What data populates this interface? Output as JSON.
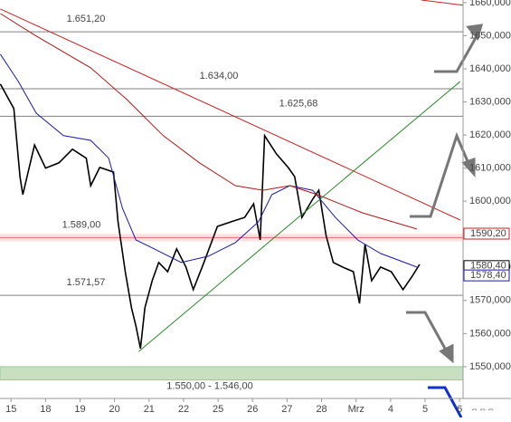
{
  "chart_data": {
    "type": "line",
    "xlim": [
      -0.32,
      13.1
    ],
    "ylim": [
      1540.4,
      1660.8
    ],
    "xticks": [
      {
        "value": 0,
        "label": "15"
      },
      {
        "value": 1,
        "label": "18"
      },
      {
        "value": 2,
        "label": "19"
      },
      {
        "value": 3,
        "label": "20"
      },
      {
        "value": 4,
        "label": "21"
      },
      {
        "value": 5,
        "label": "22"
      },
      {
        "value": 6,
        "label": "25"
      },
      {
        "value": 7,
        "label": "26"
      },
      {
        "value": 8,
        "label": "27"
      },
      {
        "value": 9,
        "label": "28"
      },
      {
        "value": 10,
        "label": "Mrz"
      },
      {
        "value": 11,
        "label": "4"
      },
      {
        "value": 12,
        "label": "5"
      },
      {
        "value": 13,
        "label": "6"
      }
    ],
    "yticks": [
      {
        "value": 1550,
        "label": "1550,000"
      },
      {
        "value": 1560,
        "label": "1560,000"
      },
      {
        "value": 1570,
        "label": "1570,000"
      },
      {
        "value": 1580,
        "label": "1580,000"
      },
      {
        "value": 1600,
        "label": "1600,000"
      },
      {
        "value": 1610,
        "label": "1610,000"
      },
      {
        "value": 1620,
        "label": "1620,000"
      },
      {
        "value": 1630,
        "label": "1630,000"
      },
      {
        "value": 1640,
        "label": "1640,000"
      },
      {
        "value": 1650,
        "label": "1650,000"
      },
      {
        "value": 1660,
        "label": "1660,000"
      }
    ],
    "series": [
      {
        "color": "#000000",
        "x": [
          -0.31,
          0.08,
          0.26,
          0.34,
          0.68,
          1.0,
          1.39,
          1.78,
          2.18,
          2.31,
          2.57,
          2.97,
          3.1,
          3.31,
          3.49,
          3.62,
          3.75,
          3.88,
          4.09,
          4.28,
          4.54,
          4.8,
          5.07,
          5.28,
          5.59,
          5.98,
          6.38,
          6.77,
          7.03,
          7.22,
          7.35,
          7.69,
          8.03,
          8.22,
          8.43,
          8.74,
          8.92,
          9.13,
          9.34,
          9.61,
          9.92,
          10.1,
          10.26,
          10.45,
          10.71,
          11.02,
          11.36,
          11.63,
          11.84
        ],
        "values": [
          1635.4,
          1628.0,
          1607.4,
          1602,
          1617,
          1610,
          1611.6,
          1615.7,
          1613,
          1604.7,
          1610.2,
          1608.8,
          1593.8,
          1578.7,
          1567.8,
          1562.3,
          1555.5,
          1567.8,
          1576,
          1581.5,
          1578.7,
          1585.6,
          1580.1,
          1573.3,
          1581.5,
          1592.4,
          1593.8,
          1595.1,
          1599.2,
          1588.3,
          1619.8,
          1614.3,
          1610.2,
          1607.4,
          1595.1,
          1600.6,
          1603.3,
          1589.7,
          1581.5,
          1580.1,
          1578.7,
          1569.1,
          1587,
          1576,
          1580.1,
          1578.7,
          1573.3,
          1577.4,
          1580.9
        ]
      },
      {
        "color": "#1a1aa6",
        "x": [
          -0.31,
          0.21,
          0.73,
          1.52,
          2.31,
          2.83,
          3.23,
          3.62,
          4.15,
          4.93,
          5.72,
          6.5,
          7.17,
          7.56,
          8.08,
          8.74,
          9.4,
          10.05,
          10.71,
          11.76
        ],
        "values": [
          1644.4,
          1636.2,
          1626.6,
          1619.8,
          1618.4,
          1613,
          1597.9,
          1588.3,
          1585.6,
          1581.5,
          1583.4,
          1587.5,
          1593.8,
          1602,
          1604.7,
          1603.3,
          1595.1,
          1588.3,
          1584.2,
          1580.1
        ]
      },
      {
        "color": "#b01818",
        "x": [
          -0.31,
          0.73,
          2.31,
          3.36,
          4.41,
          5.46,
          6.5,
          7.3,
          8.08,
          8.87,
          10.18,
          11.76
        ],
        "values": [
          1656.7,
          1649.9,
          1640.3,
          1630.7,
          1619.8,
          1611.6,
          1604.7,
          1603.3,
          1604.7,
          1602,
          1596.5,
          1591.6
        ]
      },
      {
        "color": "#cc2020",
        "x": [
          -0.31,
          13.02
        ],
        "values": [
          1658.1,
          1594.3
        ]
      },
      {
        "color": "#2a8a2a",
        "x": [
          3.7,
          13.02
        ],
        "values": [
          1554.6,
          1636.2
        ]
      },
      {
        "color": "#cc2020",
        "x": [
          11.89,
          13.1
        ],
        "values": [
          1660.8,
          1659.2
        ]
      }
    ],
    "levels": [
      {
        "value": 1651.2,
        "label": "1.651,20",
        "color": "#808080"
      },
      {
        "value": 1634,
        "label": "1.634,00",
        "color": "#808080"
      },
      {
        "value": 1625.68,
        "label": "1.625,68",
        "color": "#808080"
      },
      {
        "value": 1589,
        "label": "1.589,00",
        "color": "#e07070"
      },
      {
        "value": 1571.57,
        "label": "1.571,57",
        "color": "#808080"
      }
    ],
    "zone": {
      "from": 1550,
      "to": 1546,
      "label": "1.550,00 - 1.546,00",
      "color": "#c8e0c0"
    },
    "tags": [
      {
        "value": 1590.2,
        "label": "1590,20",
        "color": "#cc2020"
      },
      {
        "value": 1580.4,
        "label": "1580,40",
        "color": "#000000"
      },
      {
        "value": 1578.4,
        "label": "1578,40",
        "color": "#1a1aa6"
      }
    ]
  }
}
